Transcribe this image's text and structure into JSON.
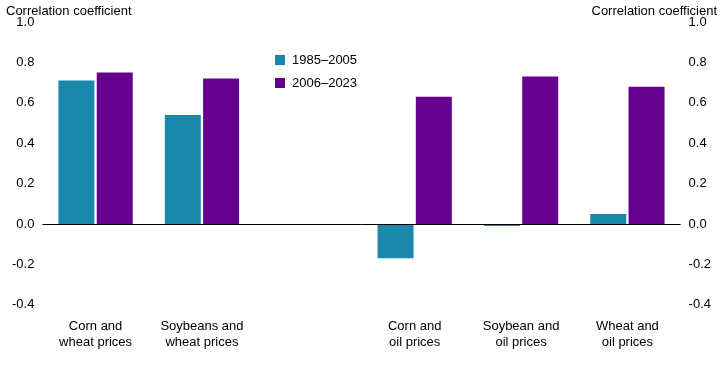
{
  "chart_data": {
    "type": "bar",
    "y_label": "Correlation coefficient",
    "y2_label": "Correlation coefficient",
    "categories": [
      "Corn and wheat prices",
      "Soybeans and wheat prices",
      null,
      "Corn and oil prices",
      "Soybean and oil prices",
      "Wheat and oil prices"
    ],
    "series": [
      {
        "name": "1985–2005",
        "color": "#1b87ab",
        "values": [
          0.71,
          0.54,
          null,
          -0.17,
          -0.01,
          0.05
        ]
      },
      {
        "name": "2006–2023",
        "color": "#66008f",
        "values": [
          0.75,
          0.72,
          null,
          0.63,
          0.73,
          0.68
        ]
      }
    ],
    "ylim": [
      -0.4,
      1
    ],
    "yticks": [
      -0.4,
      -0.2,
      {
        "value": 0,
        "label": "0.0"
      },
      0.2,
      0.4,
      0.6,
      0.8,
      {
        "value": 1,
        "label": "1.0"
      }
    ],
    "y2lim": [
      -0.4,
      1
    ],
    "y2ticks": [
      -0.4,
      -0.2,
      {
        "value": 0,
        "label": "0.0"
      },
      0.2,
      0.4,
      0.6,
      0.8,
      {
        "value": 1,
        "label": "1.0"
      }
    ],
    "grid": false,
    "legend": "upper center"
  }
}
